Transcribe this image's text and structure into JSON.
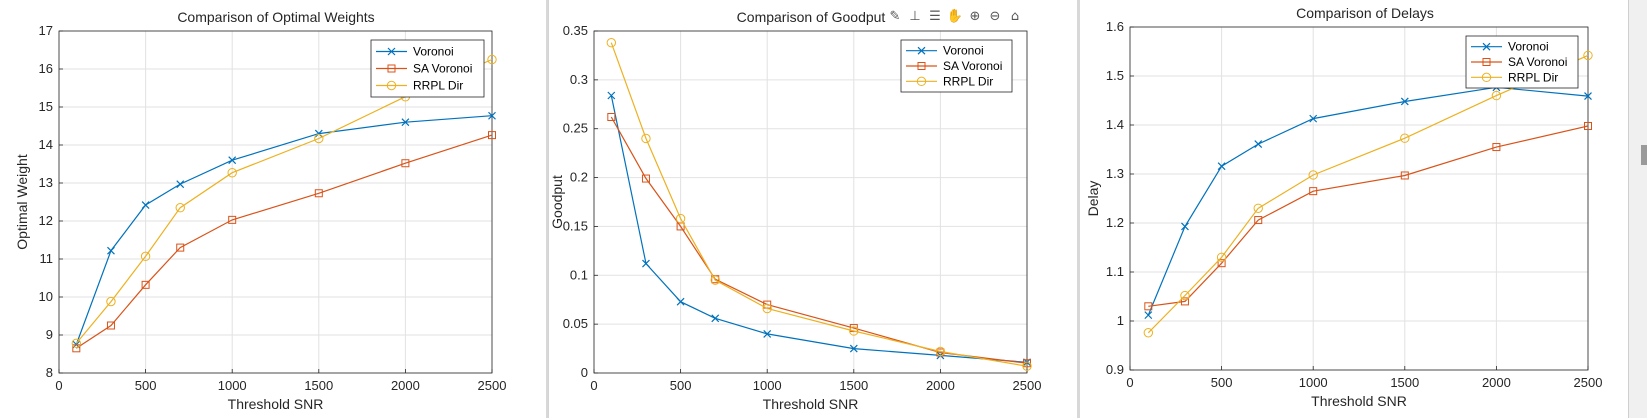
{
  "charts": [
    {
      "type": "line",
      "title": "Comparison of Optimal Weights",
      "xlabel": "Threshold SNR",
      "ylabel": "Optimal Weight",
      "xlim": [
        0,
        2500
      ],
      "ylim": [
        8,
        17
      ],
      "xticks": [
        0,
        500,
        1000,
        1500,
        2000,
        2500
      ],
      "yticks": [
        8,
        9,
        10,
        11,
        12,
        13,
        14,
        15,
        16,
        17
      ],
      "x": [
        100,
        300,
        500,
        700,
        1000,
        1500,
        2000,
        2500
      ],
      "grid": true,
      "legend_position": "top-right",
      "series": [
        {
          "name": "Voronoi",
          "marker": "x",
          "color": "#0072BD",
          "values": [
            8.75,
            11.22,
            12.42,
            12.97,
            13.6,
            14.3,
            14.6,
            14.77
          ]
        },
        {
          "name": "SA Voronoi",
          "marker": "square",
          "color": "#D95319",
          "values": [
            8.65,
            9.25,
            10.32,
            11.3,
            12.03,
            12.73,
            13.52,
            14.26
          ]
        },
        {
          "name": "RRPL Dir",
          "marker": "circle",
          "color": "#EDB120",
          "values": [
            8.78,
            9.88,
            11.07,
            12.35,
            13.27,
            14.17,
            15.27,
            16.25
          ]
        }
      ]
    },
    {
      "type": "line",
      "title": "Comparison of Goodput",
      "xlabel": "Threshold SNR",
      "ylabel": "Goodput",
      "xlim": [
        0,
        2500
      ],
      "ylim": [
        0,
        0.35
      ],
      "xticks": [
        0,
        500,
        1000,
        1500,
        2000,
        2500
      ],
      "yticks": [
        0,
        0.05,
        0.1,
        0.15,
        0.2,
        0.25,
        0.3,
        0.35
      ],
      "x": [
        100,
        300,
        500,
        700,
        1000,
        1500,
        2000,
        2500
      ],
      "grid": true,
      "legend_position": "top-right",
      "series": [
        {
          "name": "Voronoi",
          "marker": "x",
          "color": "#0072BD",
          "values": [
            0.284,
            0.112,
            0.073,
            0.056,
            0.04,
            0.025,
            0.018,
            0.011
          ]
        },
        {
          "name": "SA Voronoi",
          "marker": "square",
          "color": "#D95319",
          "values": [
            0.262,
            0.199,
            0.15,
            0.096,
            0.07,
            0.046,
            0.021,
            0.01
          ]
        },
        {
          "name": "RRPL Dir",
          "marker": "circle",
          "color": "#EDB120",
          "values": [
            0.338,
            0.24,
            0.158,
            0.095,
            0.066,
            0.043,
            0.022,
            0.007
          ]
        }
      ]
    },
    {
      "type": "line",
      "title": "Comparison of Delays",
      "xlabel": "Threshold SNR",
      "ylabel": "Delay",
      "xlim": [
        0,
        2500
      ],
      "ylim": [
        0.9,
        1.6
      ],
      "xticks": [
        0,
        500,
        1000,
        1500,
        2000,
        2500
      ],
      "yticks": [
        0.9,
        1,
        1.1,
        1.2,
        1.3,
        1.4,
        1.5,
        1.6
      ],
      "x": [
        100,
        300,
        500,
        700,
        1000,
        1500,
        2000,
        2500
      ],
      "grid": true,
      "legend_position": "top-right",
      "series": [
        {
          "name": "Voronoi",
          "marker": "x",
          "color": "#0072BD",
          "values": [
            1.012,
            1.193,
            1.316,
            1.361,
            1.413,
            1.448,
            1.477,
            1.459
          ]
        },
        {
          "name": "SA Voronoi",
          "marker": "square",
          "color": "#D95319",
          "values": [
            1.03,
            1.04,
            1.118,
            1.206,
            1.265,
            1.297,
            1.355,
            1.398
          ]
        },
        {
          "name": "RRPL Dir",
          "marker": "circle",
          "color": "#EDB120",
          "values": [
            0.976,
            1.052,
            1.13,
            1.23,
            1.298,
            1.373,
            1.46,
            1.542
          ]
        }
      ]
    }
  ],
  "toolbar": {
    "icons": [
      "brush-icon",
      "data-tips-icon",
      "legend-icon",
      "pan-icon",
      "zoom-in-icon",
      "zoom-out-icon",
      "home-icon"
    ]
  }
}
